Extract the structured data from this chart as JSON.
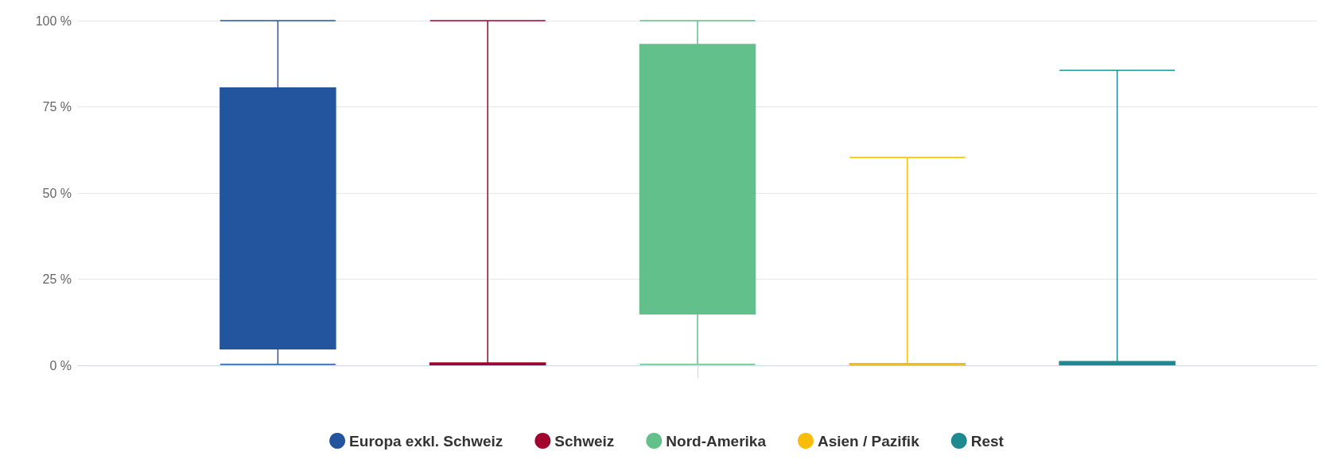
{
  "chart_data": {
    "type": "box",
    "categories": [
      null
    ],
    "ylim": [
      0,
      100
    ],
    "yticks": [
      {
        "value": 0,
        "label": "0 %"
      },
      {
        "value": 25,
        "label": "25 %"
      },
      {
        "value": 50,
        "label": "50 %"
      },
      {
        "value": 75,
        "label": "75 %"
      },
      {
        "value": 100,
        "label": "100 %"
      }
    ],
    "grid": "y",
    "legend": "bottom",
    "series": [
      {
        "name": "Europa exkl. Schweiz",
        "color": "#23559f",
        "boxes": [
          {
            "low": 0.3,
            "q1": 4.8,
            "median": 40,
            "q3": 80.5,
            "high": 100
          }
        ]
      },
      {
        "name": "Schweiz",
        "color": "#a1042f",
        "boxes": [
          {
            "low": 0.2,
            "q1": 0.2,
            "median": 0.5,
            "q3": 0.7,
            "high": 100
          }
        ]
      },
      {
        "name": "Nord-Amerika",
        "color": "#62c08b",
        "boxes": [
          {
            "low": 0.3,
            "q1": 14.9,
            "median": 50,
            "q3": 93.1,
            "high": 100
          }
        ]
      },
      {
        "name": "Asien / Pazifik",
        "color": "#f8bc09",
        "boxes": [
          {
            "low": 0.1,
            "q1": 0.1,
            "median": 0.3,
            "q3": 0.5,
            "high": 60.3
          }
        ]
      },
      {
        "name": "Rest",
        "color": "#1e8a8f",
        "boxes": [
          {
            "low": 0.2,
            "q1": 0.2,
            "median": 0.6,
            "q3": 1.1,
            "high": 85.6
          }
        ]
      }
    ]
  }
}
